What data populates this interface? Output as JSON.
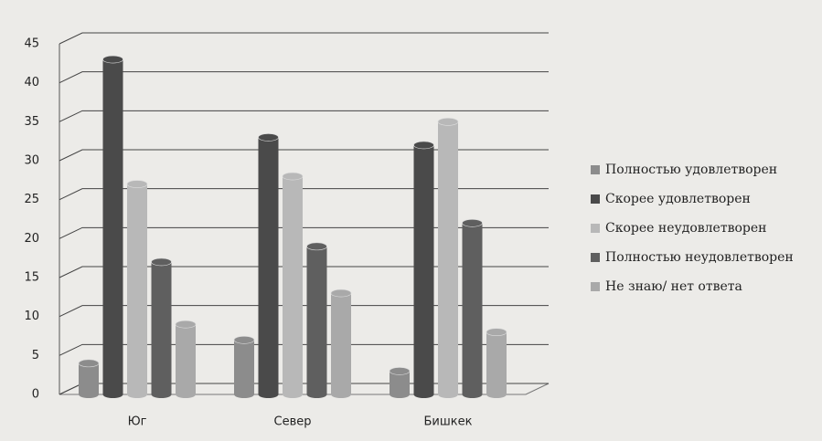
{
  "chart_data": {
    "type": "bar",
    "categories": [
      "Юг",
      "Север",
      "Бишкек"
    ],
    "series": [
      {
        "name": "Полностью удовлетворен",
        "color": "#8c8c8c",
        "values": [
          4,
          7,
          3
        ]
      },
      {
        "name": "Скорее удовлетворен",
        "color": "#4a4a4a",
        "values": [
          43,
          33,
          32
        ]
      },
      {
        "name": "Скорее неудовлетворен",
        "color": "#b8b8b8",
        "values": [
          27,
          28,
          35
        ]
      },
      {
        "name": "Полностью неудовлетворен",
        "color": "#5f5f5f",
        "values": [
          17,
          19,
          22
        ]
      },
      {
        "name": "Не знаю/ нет ответа",
        "color": "#a9a9a9",
        "values": [
          9,
          13,
          8
        ]
      }
    ],
    "ylim": [
      0,
      45
    ],
    "yticks": [
      0,
      5,
      10,
      15,
      20,
      25,
      30,
      35,
      40,
      45
    ],
    "grid": true,
    "legend": "right"
  }
}
